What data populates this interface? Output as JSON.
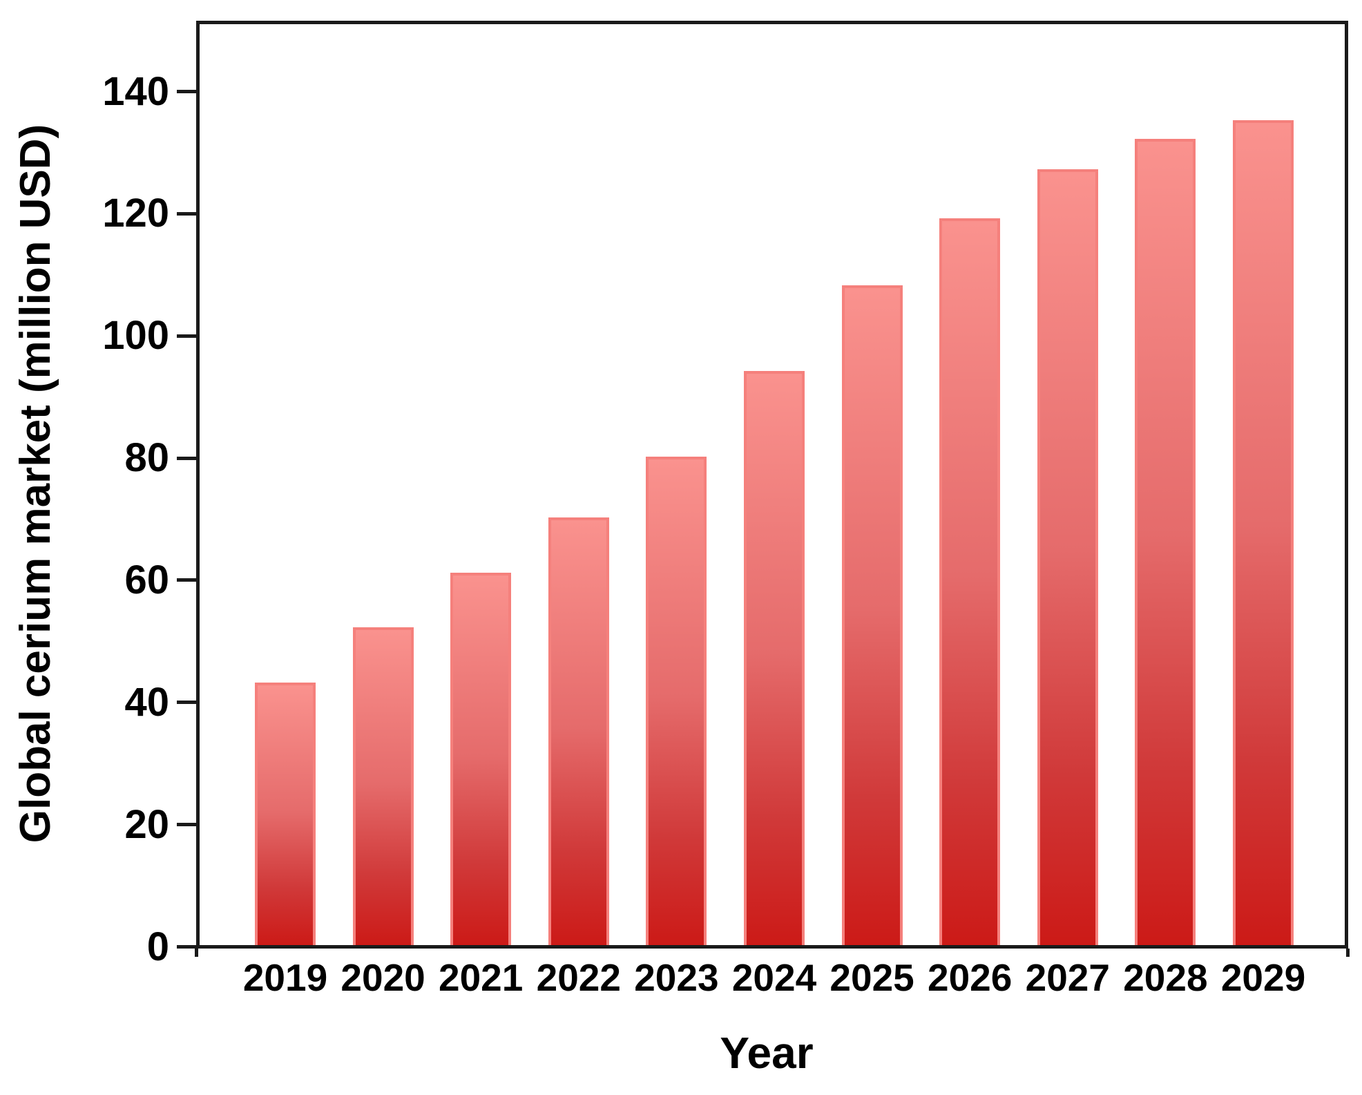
{
  "chart_data": {
    "type": "bar",
    "title": "",
    "xlabel": "Year",
    "ylabel": "Global cerium market (million USD)",
    "categories": [
      "2019",
      "2020",
      "2021",
      "2022",
      "2023",
      "2024",
      "2025",
      "2026",
      "2027",
      "2028",
      "2029"
    ],
    "values": [
      43,
      52,
      61,
      70,
      80,
      94,
      108,
      119,
      127,
      132,
      135
    ],
    "yticks": [
      0,
      20,
      40,
      60,
      80,
      100,
      120,
      140
    ],
    "ylim": [
      0,
      152
    ],
    "grid": false,
    "legend": null,
    "colors": {
      "bar_gradient_top": "#FA928E",
      "bar_gradient_mid": "#E56B6B",
      "bar_gradient_low": "#D03939",
      "bar_gradient_bottom": "#CC1A17",
      "bar_border": "#F5807C",
      "axis": "#1a1a1a",
      "background": "#ffffff"
    }
  }
}
